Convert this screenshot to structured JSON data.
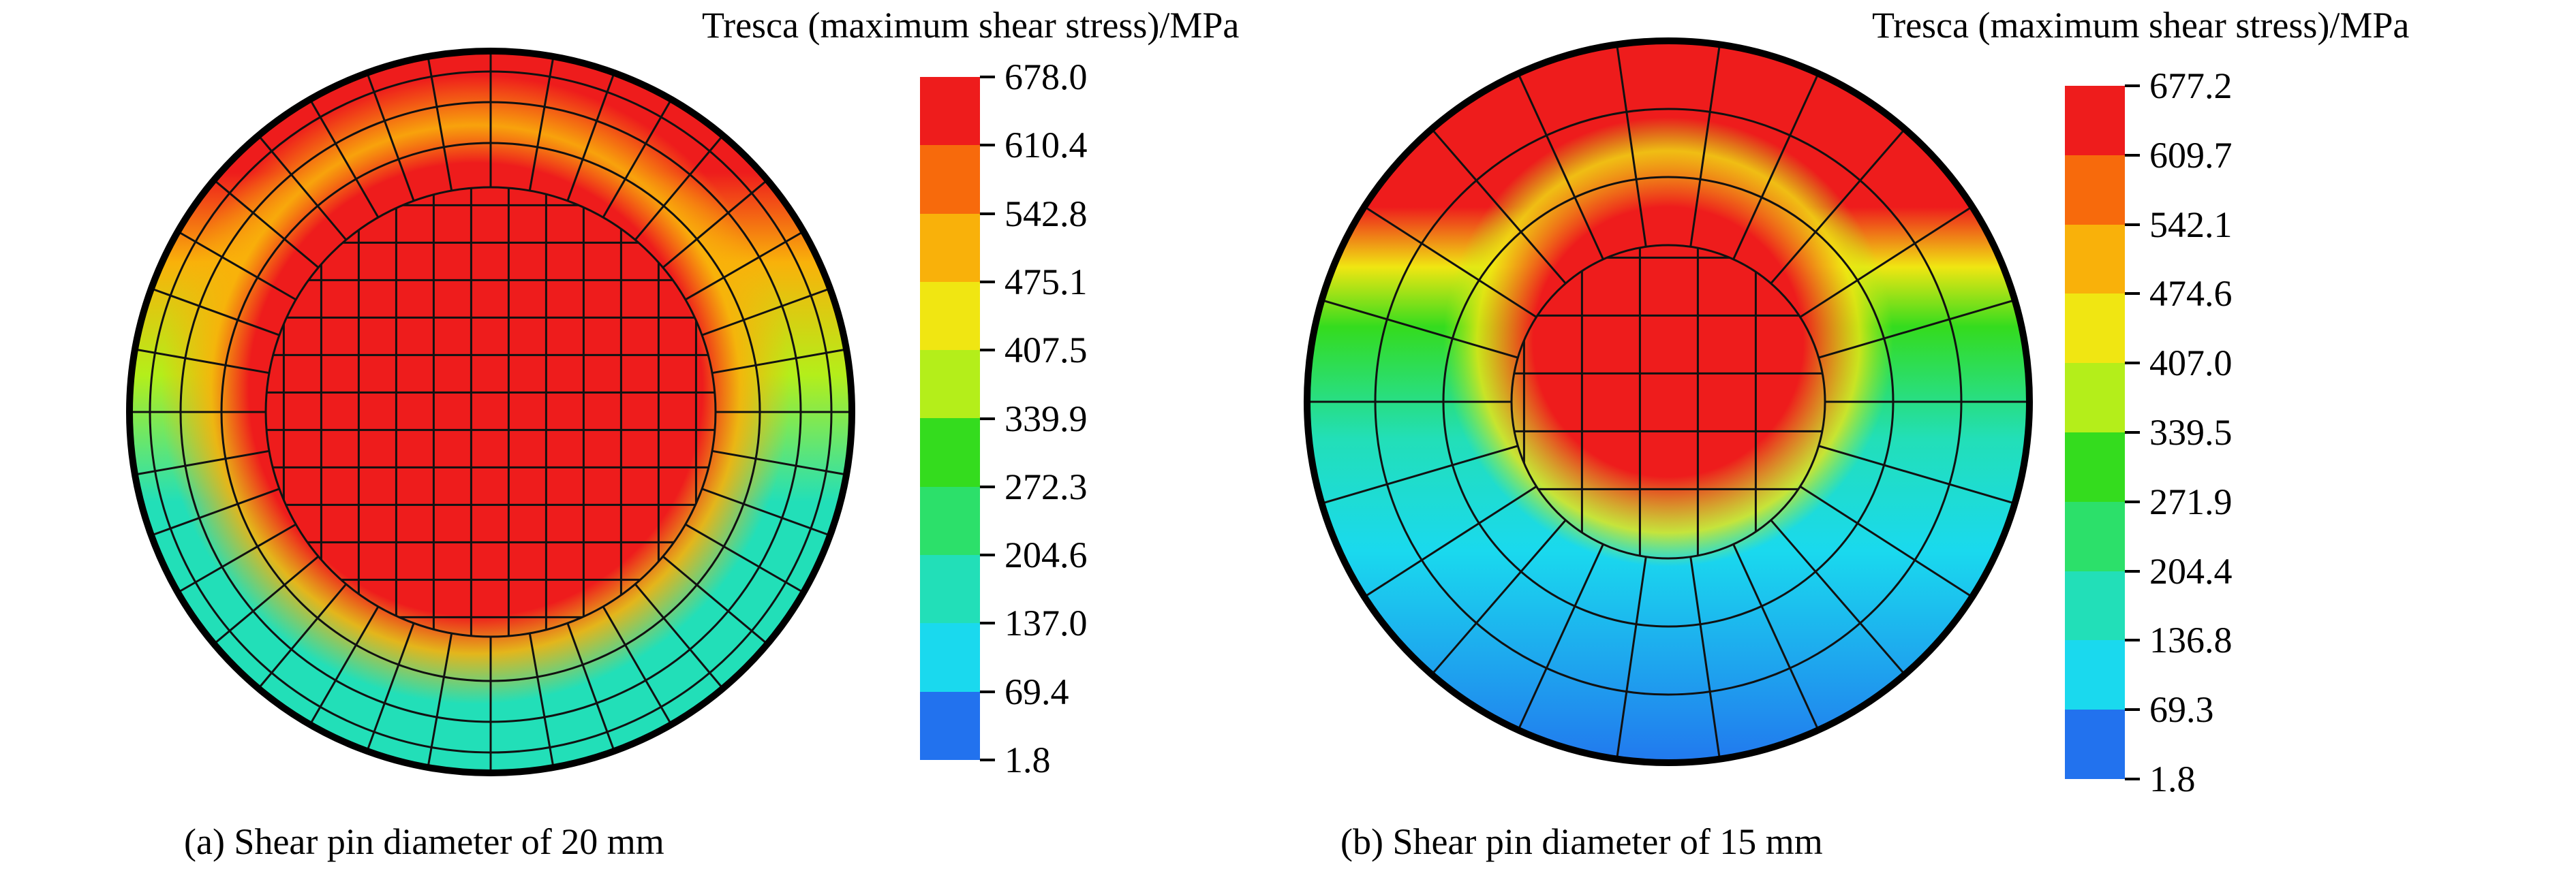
{
  "panels": [
    {
      "id": "a",
      "legend_title": "Tresca (maximum shear stress)/MPa",
      "ticks": [
        "678.0",
        "610.4",
        "542.8",
        "475.1",
        "407.5",
        "339.9",
        "272.3",
        "204.6",
        "137.0",
        "69.4",
        "1.8"
      ],
      "caption": "(a) Shear pin diameter of 20 mm"
    },
    {
      "id": "b",
      "legend_title": "Tresca (maximum shear stress)/MPa",
      "ticks": [
        "677.2",
        "609.7",
        "542.1",
        "474.6",
        "407.0",
        "339.5",
        "271.9",
        "204.4",
        "136.8",
        "69.3",
        "1.8"
      ],
      "caption": "(b) Shear pin diameter of 15 mm"
    }
  ],
  "colors": {
    "scale": [
      "#ee1c1c",
      "#f76a0c",
      "#f9b10a",
      "#f0e612",
      "#b4ee1a",
      "#34dc1e",
      "#2ce06a",
      "#22dfb8",
      "#1ad9ee",
      "#2272ee",
      "#1010ee"
    ],
    "mesh_line": "#111111"
  }
}
